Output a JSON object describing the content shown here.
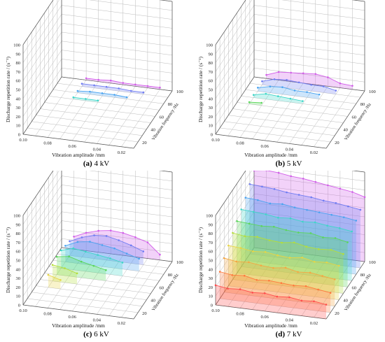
{
  "figure": {
    "panels": [
      {
        "letter": "(a)",
        "voltage": "4 kV"
      },
      {
        "letter": "(b)",
        "voltage": "5 kV"
      },
      {
        "letter": "(c)",
        "voltage": "6 kV"
      },
      {
        "letter": "(d)",
        "voltage": "7 kV"
      }
    ]
  },
  "colors": {
    "axis": "#555555",
    "grid": "#bbbbbb",
    "series": [
      "#ff4d4d",
      "#ff7a3d",
      "#f5a742",
      "#e8d544",
      "#b5de3a",
      "#5bd65b",
      "#3ed6c8",
      "#4aa3f0",
      "#6f7cf2",
      "#d15de8"
    ]
  },
  "chart_data": [
    {
      "panel": "(a) 4 kV",
      "type": "area",
      "xlabel": "Vibration amplitude /mm",
      "ylabel": "Vibration frequency /Hz",
      "zlabel": "Discharge repetition rate / (s⁻¹)",
      "x_ticks": [
        "0.10",
        "0.08",
        "0.06",
        "0.04",
        "0.02"
      ],
      "y_ticks": [
        "20",
        "40",
        "60",
        "80",
        "100"
      ],
      "z_ticks": [
        "0",
        "10",
        "20",
        "30",
        "40",
        "50",
        "60",
        "70",
        "80",
        "90",
        "100"
      ],
      "xlim": [
        0.1,
        0.01
      ],
      "ylim": [
        10,
        100
      ],
      "zlim": [
        0,
        100
      ],
      "series": [
        {
          "y": 70,
          "x": [
            0.08,
            0.07,
            0.06
          ],
          "z": [
            2,
            2,
            2
          ]
        },
        {
          "y": 80,
          "x": [
            0.08,
            0.07,
            0.06,
            0.05,
            0.04
          ],
          "z": [
            2,
            3,
            3,
            3,
            2
          ]
        },
        {
          "y": 90,
          "x": [
            0.08,
            0.07,
            0.06,
            0.05,
            0.04,
            0.03
          ],
          "z": [
            3,
            3,
            3,
            3,
            2,
            2
          ]
        },
        {
          "y": 100,
          "x": [
            0.08,
            0.07,
            0.06,
            0.05,
            0.04,
            0.03,
            0.02
          ],
          "z": [
            2,
            2,
            3,
            2,
            2,
            2,
            2
          ]
        }
      ]
    },
    {
      "panel": "(b) 5 kV",
      "type": "area",
      "xlabel": "Vibration amplitude /mm",
      "ylabel": "Vibration frequency /Hz",
      "zlabel": "Discharge repetition rate / (s⁻¹)",
      "x_ticks": [
        "0.10",
        "0.08",
        "0.06",
        "0.04",
        "0.02"
      ],
      "y_ticks": [
        "20",
        "40",
        "60",
        "80",
        "100"
      ],
      "z_ticks": [
        "0",
        "10",
        "20",
        "30",
        "40",
        "50",
        "60",
        "70",
        "80",
        "90",
        "100"
      ],
      "xlim": [
        0.1,
        0.01
      ],
      "ylim": [
        10,
        100
      ],
      "zlim": [
        0,
        100
      ],
      "series": [
        {
          "y": 60,
          "x": [
            0.09,
            0.08
          ],
          "z": [
            2,
            3
          ]
        },
        {
          "y": 70,
          "x": [
            0.09,
            0.08,
            0.07,
            0.06,
            0.05
          ],
          "z": [
            3,
            6,
            5,
            4,
            3
          ]
        },
        {
          "y": 80,
          "x": [
            0.09,
            0.08,
            0.07,
            0.06,
            0.05,
            0.04
          ],
          "z": [
            4,
            7,
            8,
            6,
            6,
            5
          ]
        },
        {
          "y": 90,
          "x": [
            0.09,
            0.08,
            0.07,
            0.06,
            0.05,
            0.04,
            0.03
          ],
          "z": [
            4,
            8,
            9,
            8,
            7,
            7,
            4
          ]
        },
        {
          "y": 100,
          "x": [
            0.09,
            0.08,
            0.07,
            0.06,
            0.05,
            0.04,
            0.03,
            0.02
          ],
          "z": [
            4,
            9,
            10,
            11,
            12,
            10,
            5,
            4
          ]
        }
      ]
    },
    {
      "panel": "(c) 6 kV",
      "type": "area",
      "xlabel": "Vibration amplitude /mm",
      "ylabel": "Vibration frequency /Hz",
      "zlabel": "Discharge repetition rate / (s⁻¹)",
      "x_ticks": [
        "0.10",
        "0.08",
        "0.06",
        "0.04",
        "0.02"
      ],
      "y_ticks": [
        "20",
        "40",
        "60",
        "80",
        "100"
      ],
      "z_ticks": [
        "0",
        "10",
        "20",
        "30",
        "40",
        "50",
        "60",
        "70",
        "80",
        "90",
        "100"
      ],
      "xlim": [
        0.1,
        0.01
      ],
      "ylim": [
        10,
        100
      ],
      "zlim": [
        0,
        100
      ],
      "series": [
        {
          "y": 40,
          "x": [
            0.09,
            0.08
          ],
          "z": [
            14,
            10
          ]
        },
        {
          "y": 50,
          "x": [
            0.09,
            0.08,
            0.07
          ],
          "z": [
            18,
            16,
            12
          ]
        },
        {
          "y": 60,
          "x": [
            0.09,
            0.08,
            0.07,
            0.06,
            0.05
          ],
          "z": [
            20,
            22,
            18,
            15,
            12
          ]
        },
        {
          "y": 70,
          "x": [
            0.09,
            0.08,
            0.07,
            0.06,
            0.05,
            0.04
          ],
          "z": [
            20,
            24,
            22,
            20,
            18,
            15
          ]
        },
        {
          "y": 80,
          "x": [
            0.09,
            0.08,
            0.07,
            0.06,
            0.05,
            0.04,
            0.03
          ],
          "z": [
            18,
            24,
            26,
            24,
            22,
            18,
            14
          ]
        },
        {
          "y": 90,
          "x": [
            0.09,
            0.08,
            0.07,
            0.06,
            0.05,
            0.04,
            0.03
          ],
          "z": [
            16,
            22,
            26,
            27,
            24,
            20,
            15
          ]
        },
        {
          "y": 100,
          "x": [
            0.09,
            0.08,
            0.07,
            0.06,
            0.05,
            0.04,
            0.03,
            0.02
          ],
          "z": [
            14,
            20,
            24,
            26,
            25,
            22,
            18,
            6
          ]
        }
      ]
    },
    {
      "panel": "(d) 7 kV",
      "type": "area",
      "xlabel": "Vibration amplitude /mm",
      "ylabel": "Vibration frequency /Hz",
      "zlabel": "Discharge repetition rate / (s⁻¹)",
      "x_ticks": [
        "0.10",
        "0.08",
        "0.06",
        "0.04",
        "0.02"
      ],
      "y_ticks": [
        "20",
        "40",
        "60",
        "80",
        "100"
      ],
      "z_ticks": [
        "0",
        "10",
        "20",
        "30",
        "40",
        "50",
        "60",
        "70",
        "80",
        "90",
        "100"
      ],
      "xlim": [
        0.1,
        0.01
      ],
      "ylim": [
        10,
        100
      ],
      "zlim": [
        0,
        100
      ],
      "series": [
        {
          "y": 10,
          "x": [
            0.1,
            0.09,
            0.08,
            0.07,
            0.06,
            0.05,
            0.04,
            0.03,
            0.02,
            0.01
          ],
          "z": [
            22,
            20,
            21,
            19,
            20,
            18,
            19,
            17,
            18,
            16
          ]
        },
        {
          "y": 20,
          "x": [
            0.1,
            0.09,
            0.08,
            0.07,
            0.06,
            0.05,
            0.04,
            0.03,
            0.02,
            0.01
          ],
          "z": [
            30,
            28,
            29,
            26,
            27,
            26,
            25,
            26,
            24,
            22
          ]
        },
        {
          "y": 30,
          "x": [
            0.1,
            0.09,
            0.08,
            0.07,
            0.06,
            0.05,
            0.04,
            0.03,
            0.02,
            0.01
          ],
          "z": [
            38,
            36,
            37,
            35,
            34,
            36,
            33,
            34,
            32,
            30
          ]
        },
        {
          "y": 40,
          "x": [
            0.1,
            0.09,
            0.08,
            0.07,
            0.06,
            0.05,
            0.04,
            0.03,
            0.02,
            0.01
          ],
          "z": [
            45,
            44,
            42,
            43,
            41,
            40,
            42,
            39,
            40,
            38
          ]
        },
        {
          "y": 50,
          "x": [
            0.1,
            0.09,
            0.08,
            0.07,
            0.06,
            0.05,
            0.04,
            0.03,
            0.02,
            0.01
          ],
          "z": [
            52,
            50,
            51,
            49,
            48,
            50,
            47,
            46,
            47,
            44
          ]
        },
        {
          "y": 60,
          "x": [
            0.1,
            0.09,
            0.08,
            0.07,
            0.06,
            0.05,
            0.04,
            0.03,
            0.02,
            0.01
          ],
          "z": [
            58,
            57,
            56,
            57,
            55,
            54,
            55,
            52,
            53,
            50
          ]
        },
        {
          "y": 70,
          "x": [
            0.1,
            0.09,
            0.08,
            0.07,
            0.06,
            0.05,
            0.04,
            0.03,
            0.02,
            0.01
          ],
          "z": [
            64,
            63,
            62,
            60,
            61,
            59,
            60,
            58,
            57,
            55
          ]
        },
        {
          "y": 80,
          "x": [
            0.1,
            0.09,
            0.08,
            0.07,
            0.06,
            0.05,
            0.04,
            0.03,
            0.02,
            0.01
          ],
          "z": [
            70,
            69,
            67,
            68,
            66,
            65,
            64,
            63,
            62,
            60
          ]
        },
        {
          "y": 90,
          "x": [
            0.1,
            0.09,
            0.08,
            0.07,
            0.06,
            0.05,
            0.04,
            0.03,
            0.02,
            0.01
          ],
          "z": [
            78,
            77,
            76,
            74,
            73,
            72,
            70,
            69,
            67,
            65
          ]
        },
        {
          "y": 100,
          "x": [
            0.1,
            0.09,
            0.08,
            0.07,
            0.06,
            0.05,
            0.04,
            0.03,
            0.02,
            0.01
          ],
          "z": [
            86,
            88,
            87,
            85,
            84,
            82,
            80,
            78,
            76,
            72
          ]
        }
      ]
    }
  ]
}
